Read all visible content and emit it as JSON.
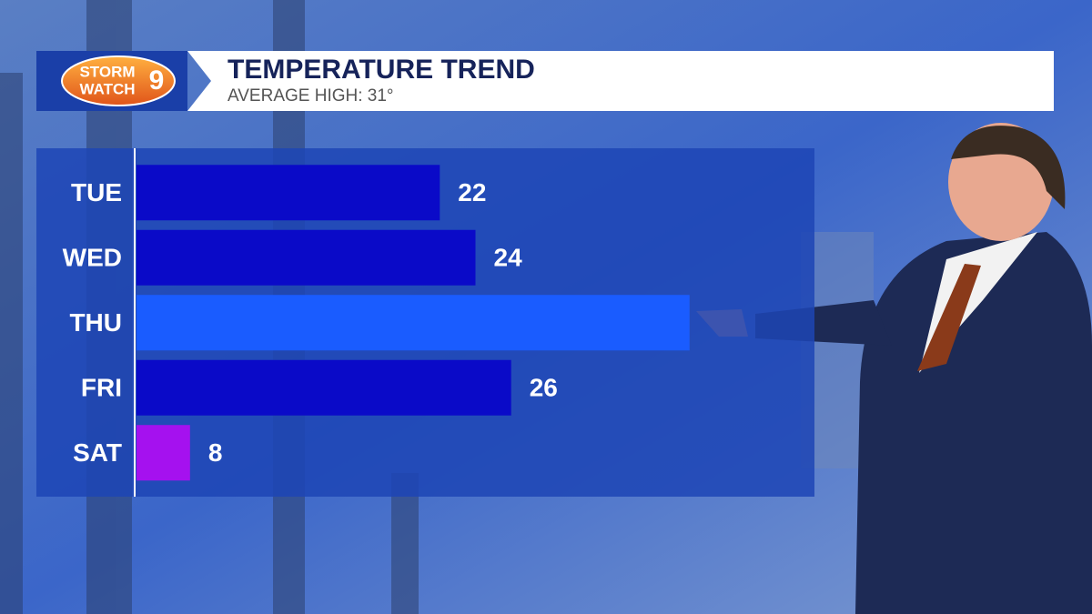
{
  "logo": {
    "line1": "STORM",
    "line2": "WATCH",
    "number": "9"
  },
  "chart_data": {
    "type": "bar",
    "orientation": "horizontal",
    "title": "TEMPERATURE TREND",
    "subtitle": "AVERAGE HIGH: 31°",
    "categories": [
      "TUE",
      "WED",
      "THU",
      "FRI",
      "SAT"
    ],
    "values": [
      22,
      24,
      36,
      26,
      8
    ],
    "value_labels": [
      "22",
      "24",
      null,
      "26",
      "8"
    ],
    "colors": [
      "#0a0ac8",
      "#0a0ac8",
      "#1a5cff",
      "#0a0ac8",
      "#a511ef"
    ],
    "xlim": [
      5,
      43
    ]
  }
}
